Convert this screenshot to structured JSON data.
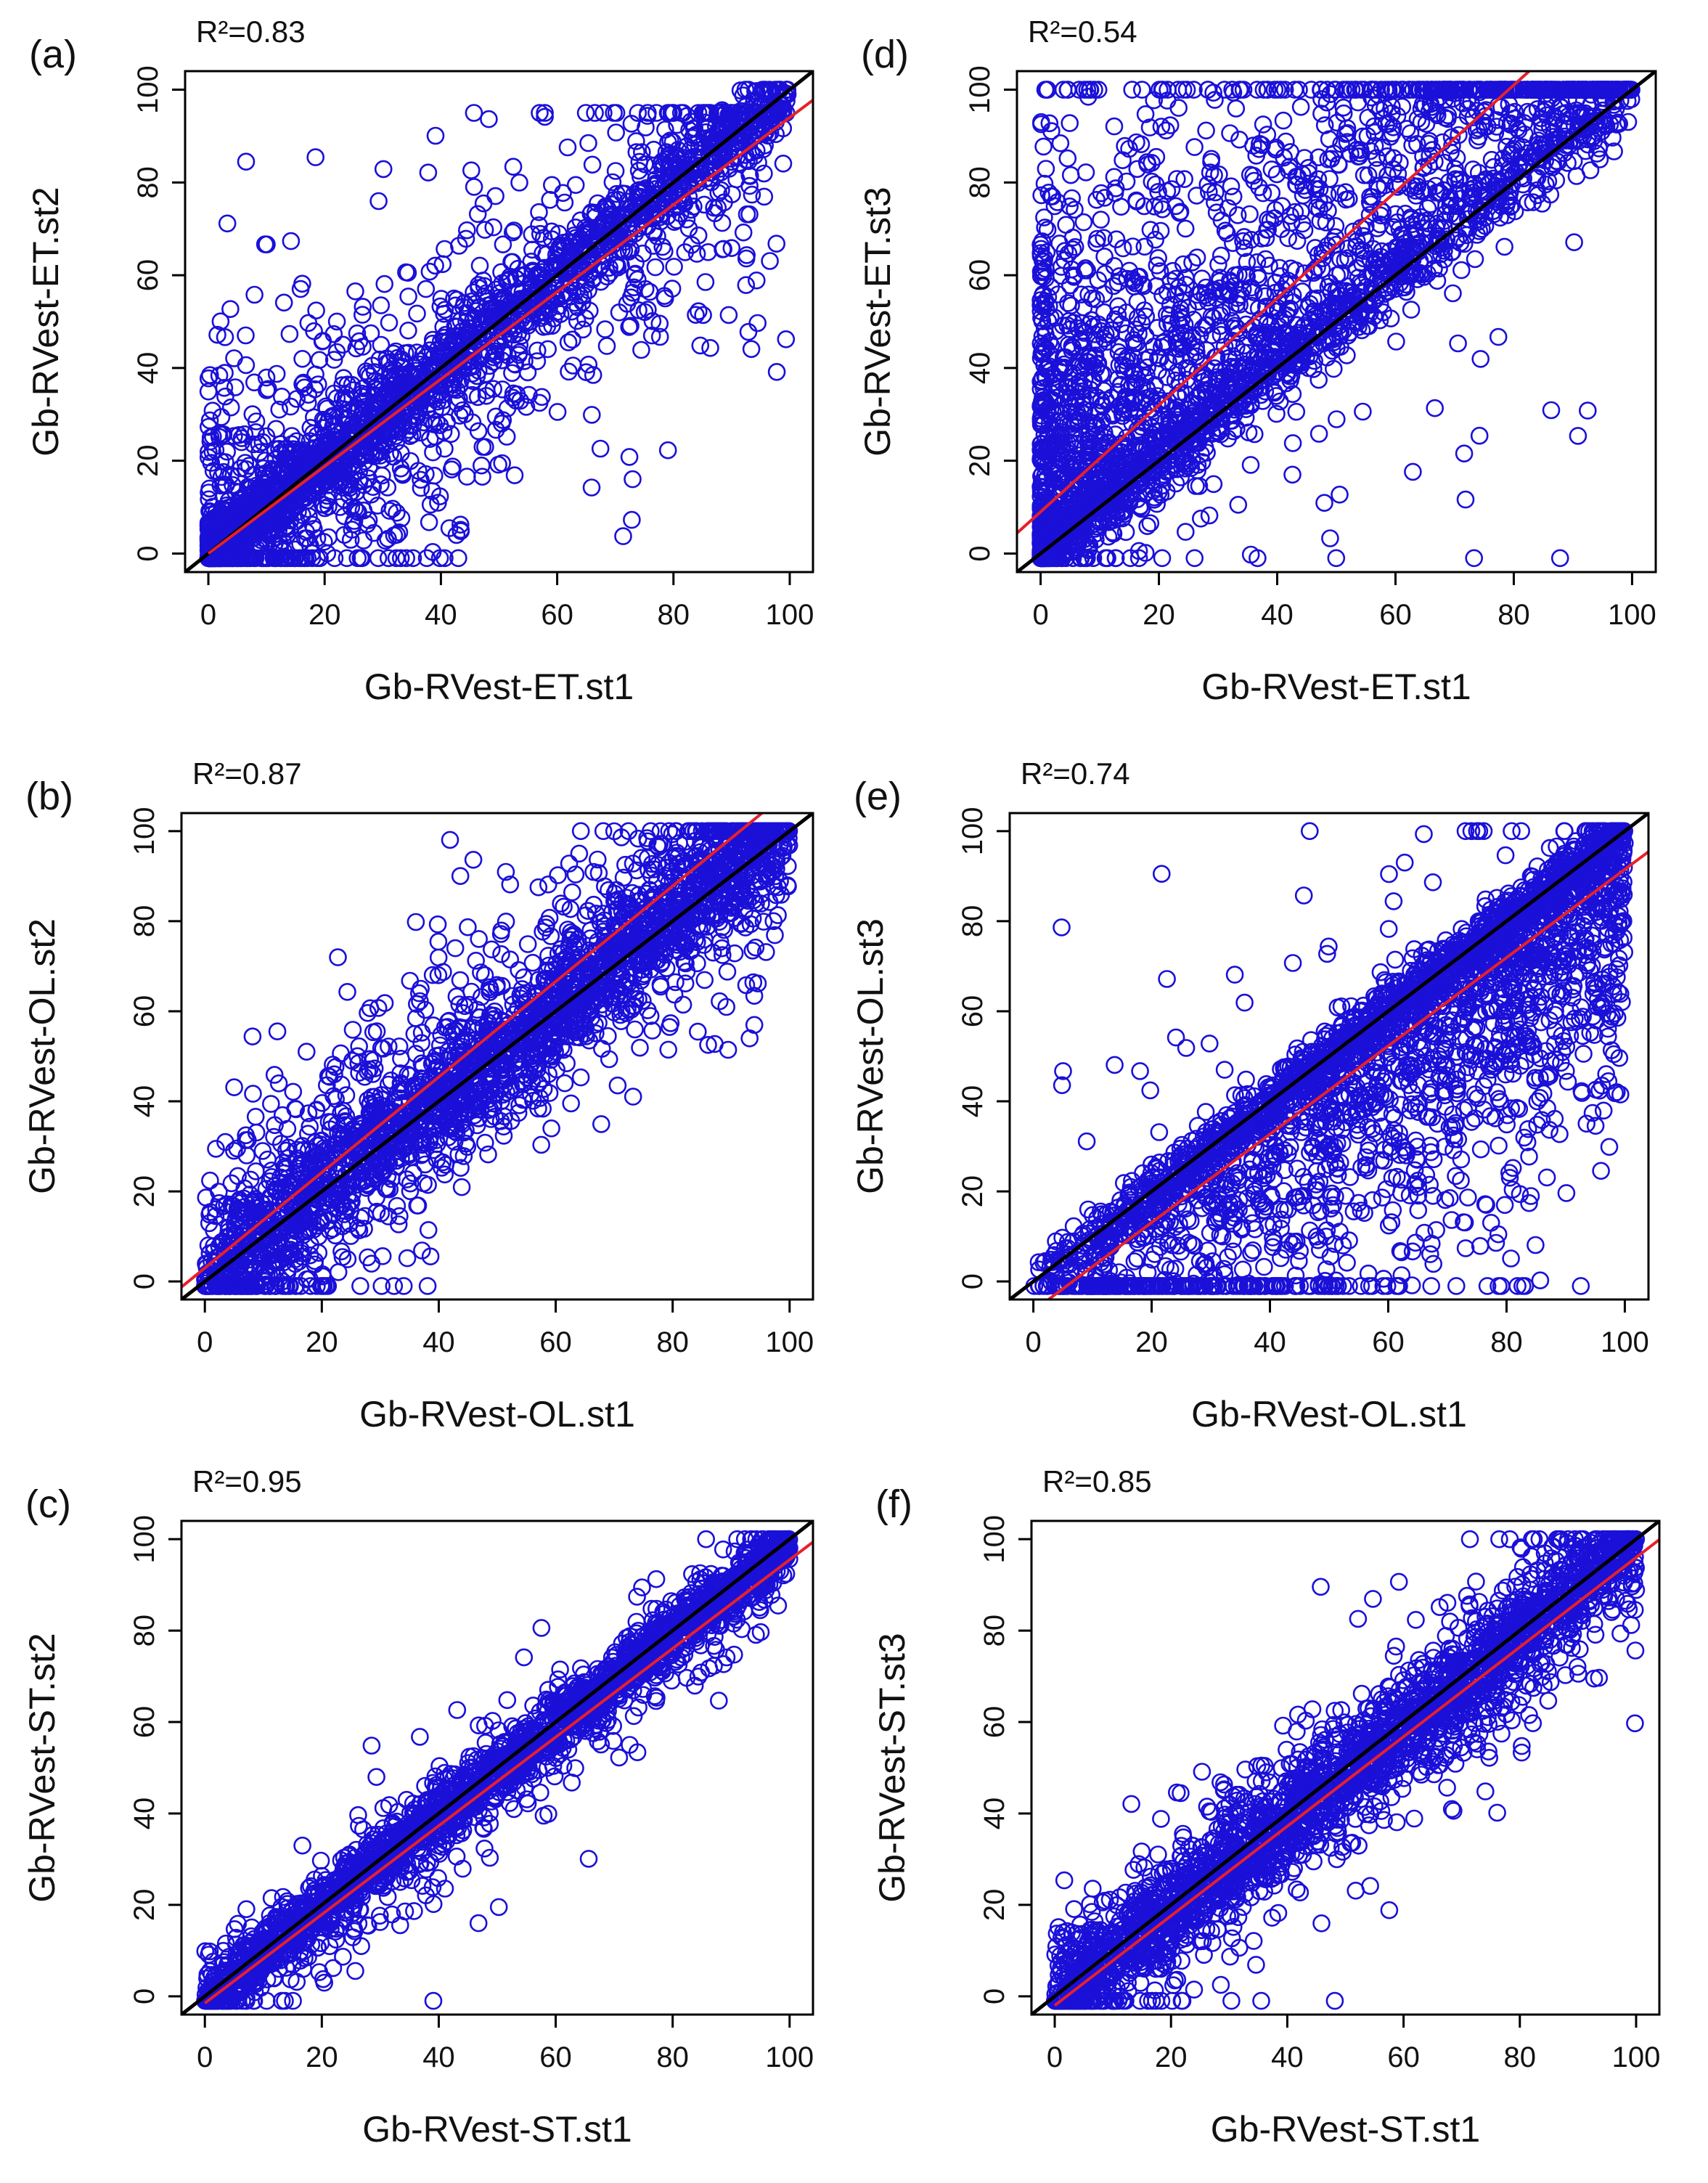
{
  "figure": {
    "colors": {
      "points": "#1a10d8",
      "identity_line": "#000000",
      "fit_line": "#e8202a",
      "frame": "#000000"
    }
  },
  "chart_data": [
    {
      "id": "a",
      "type": "scatter",
      "panel_label": "(a)",
      "r2_text": "R²=0.83",
      "xlabel": "Gb-RVest-ET.st1",
      "ylabel": "Gb-RVest-ET.st2",
      "xlim": [
        -4,
        104
      ],
      "ylim": [
        -4,
        104
      ],
      "xticks": [
        0,
        20,
        40,
        60,
        80,
        100
      ],
      "yticks": [
        0,
        20,
        40,
        60,
        80,
        100
      ],
      "identity_line": {
        "slope": 1,
        "intercept": 0
      },
      "fit_line": {
        "slope": 0.94,
        "intercept": 0.0,
        "x_range": [
          0,
          104
        ]
      },
      "point_cloud": {
        "n": 2600,
        "band_sd": 4,
        "upper_tail": 0.18,
        "lower_tail": 0.22,
        "tail_scale": 22,
        "x_skew": 1.6,
        "seed": 11
      }
    },
    {
      "id": "b",
      "type": "scatter",
      "panel_label": "(b)",
      "r2_text": "R²=0.87",
      "xlabel": "Gb-RVest-OL.st1",
      "ylabel": "Gb-RVest-OL.st2",
      "xlim": [
        -4,
        104
      ],
      "ylim": [
        -4,
        104
      ],
      "xticks": [
        0,
        20,
        40,
        60,
        80,
        100
      ],
      "yticks": [
        0,
        20,
        40,
        60,
        80,
        100
      ],
      "identity_line": {
        "slope": 1,
        "intercept": 0
      },
      "fit_line": {
        "slope": 1.06,
        "intercept": 3.0,
        "x_range": [
          -4,
          104
        ]
      },
      "point_cloud": {
        "n": 2600,
        "band_sd": 6,
        "upper_tail": 0.3,
        "lower_tail": 0.16,
        "tail_scale": 16,
        "x_skew": 1.0,
        "seed": 22
      }
    },
    {
      "id": "c",
      "type": "scatter",
      "panel_label": "(c)",
      "r2_text": "R²=0.95",
      "xlabel": "Gb-RVest-ST.st1",
      "ylabel": "Gb-RVest-ST.st2",
      "xlim": [
        -4,
        104
      ],
      "ylim": [
        -4,
        104
      ],
      "xticks": [
        0,
        20,
        40,
        60,
        80,
        100
      ],
      "yticks": [
        0,
        20,
        40,
        60,
        80,
        100
      ],
      "identity_line": {
        "slope": 1,
        "intercept": 0
      },
      "fit_line": {
        "slope": 0.97,
        "intercept": -1.5,
        "x_range": [
          0,
          104
        ]
      },
      "point_cloud": {
        "n": 2400,
        "band_sd": 3,
        "upper_tail": 0.05,
        "lower_tail": 0.25,
        "tail_scale": 8,
        "x_skew": 1.0,
        "seed": 33
      }
    },
    {
      "id": "d",
      "type": "scatter",
      "panel_label": "(d)",
      "r2_text": "R²=0.54",
      "xlabel": "Gb-RVest-ET.st1",
      "ylabel": "Gb-RVest-ET.st3",
      "xlim": [
        -4,
        104
      ],
      "ylim": [
        -4,
        104
      ],
      "xticks": [
        0,
        20,
        40,
        60,
        80,
        100
      ],
      "yticks": [
        0,
        20,
        40,
        60,
        80,
        100
      ],
      "identity_line": {
        "slope": 1,
        "intercept": 0
      },
      "fit_line": {
        "slope": 1.15,
        "intercept": 9.0,
        "x_range": [
          -4,
          104
        ]
      },
      "point_cloud": {
        "n": 3000,
        "band_sd": 4,
        "upper_tail": 0.6,
        "lower_tail": 0.03,
        "tail_scale": 40,
        "x_skew": 1.8,
        "seed": 44
      }
    },
    {
      "id": "e",
      "type": "scatter",
      "panel_label": "(e)",
      "r2_text": "R²=0.74",
      "xlabel": "Gb-RVest-OL.st1",
      "ylabel": "Gb-RVest-OL.st3",
      "xlim": [
        -4,
        104
      ],
      "ylim": [
        -4,
        104
      ],
      "xticks": [
        0,
        20,
        40,
        60,
        80,
        100
      ],
      "yticks": [
        0,
        20,
        40,
        60,
        80,
        100
      ],
      "identity_line": {
        "slope": 1,
        "intercept": 0
      },
      "fit_line": {
        "slope": 0.98,
        "intercept": -6.5,
        "x_range": [
          -4,
          104
        ]
      },
      "point_cloud": {
        "n": 3000,
        "band_sd": 3,
        "upper_tail": 0.02,
        "lower_tail": 0.55,
        "tail_scale": 30,
        "x_skew": 0.7,
        "seed": 55
      }
    },
    {
      "id": "f",
      "type": "scatter",
      "panel_label": "(f)",
      "r2_text": "R²=0.85",
      "xlabel": "Gb-RVest-ST.st1",
      "ylabel": "Gb-RVest-ST.st3",
      "xlim": [
        -4,
        104
      ],
      "ylim": [
        -4,
        104
      ],
      "xticks": [
        0,
        20,
        40,
        60,
        80,
        100
      ],
      "yticks": [
        0,
        20,
        40,
        60,
        80,
        100
      ],
      "identity_line": {
        "slope": 1,
        "intercept": 0
      },
      "fit_line": {
        "slope": 0.98,
        "intercept": -2.0,
        "x_range": [
          0,
          104
        ]
      },
      "point_cloud": {
        "n": 2600,
        "band_sd": 5,
        "upper_tail": 0.12,
        "lower_tail": 0.28,
        "tail_scale": 12,
        "x_skew": 1.0,
        "seed": 66
      }
    }
  ]
}
